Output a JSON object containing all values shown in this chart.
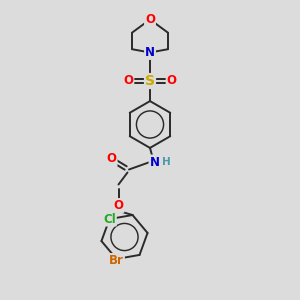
{
  "bg_color": "#dcdcdc",
  "bond_color": "#2a2a2a",
  "line_width": 1.4,
  "atom_colors": {
    "O": "#ff0000",
    "N": "#0000cc",
    "S": "#ccaa00",
    "Cl": "#22aa22",
    "Br": "#cc6600",
    "C": "#2a2a2a",
    "H": "#4a9aaa"
  },
  "font_size": 8.5,
  "fig_w": 3.0,
  "fig_h": 3.0,
  "dpi": 100,
  "xlim": [
    0,
    10
  ],
  "ylim": [
    0,
    10
  ]
}
